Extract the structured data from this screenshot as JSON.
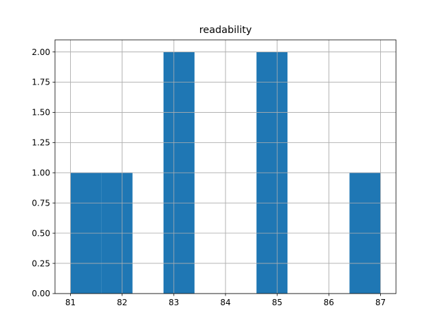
{
  "chart_data": {
    "type": "bar",
    "title": "readability",
    "xlabel": "",
    "ylabel": "",
    "bin_edges": [
      81.0,
      81.6,
      82.2,
      82.8,
      83.4,
      84.0,
      84.6,
      85.2,
      85.8,
      86.4,
      87.0
    ],
    "values": [
      1,
      1,
      0,
      2,
      0,
      0,
      2,
      0,
      0,
      1
    ],
    "xlim": [
      80.7,
      87.3
    ],
    "ylim": [
      0,
      2.1
    ],
    "xticks": [
      81,
      82,
      83,
      84,
      85,
      86,
      87
    ],
    "xtick_labels": [
      "81",
      "82",
      "83",
      "84",
      "85",
      "86",
      "87"
    ],
    "yticks": [
      0,
      0.25,
      0.5,
      0.75,
      1.0,
      1.25,
      1.5,
      1.75,
      2.0
    ],
    "ytick_labels": [
      "0.00",
      "0.25",
      "0.50",
      "0.75",
      "1.00",
      "1.25",
      "1.50",
      "1.75",
      "2.00"
    ],
    "grid": true,
    "bar_color": "#1f77b4",
    "grid_color": "#b0b0b0"
  }
}
